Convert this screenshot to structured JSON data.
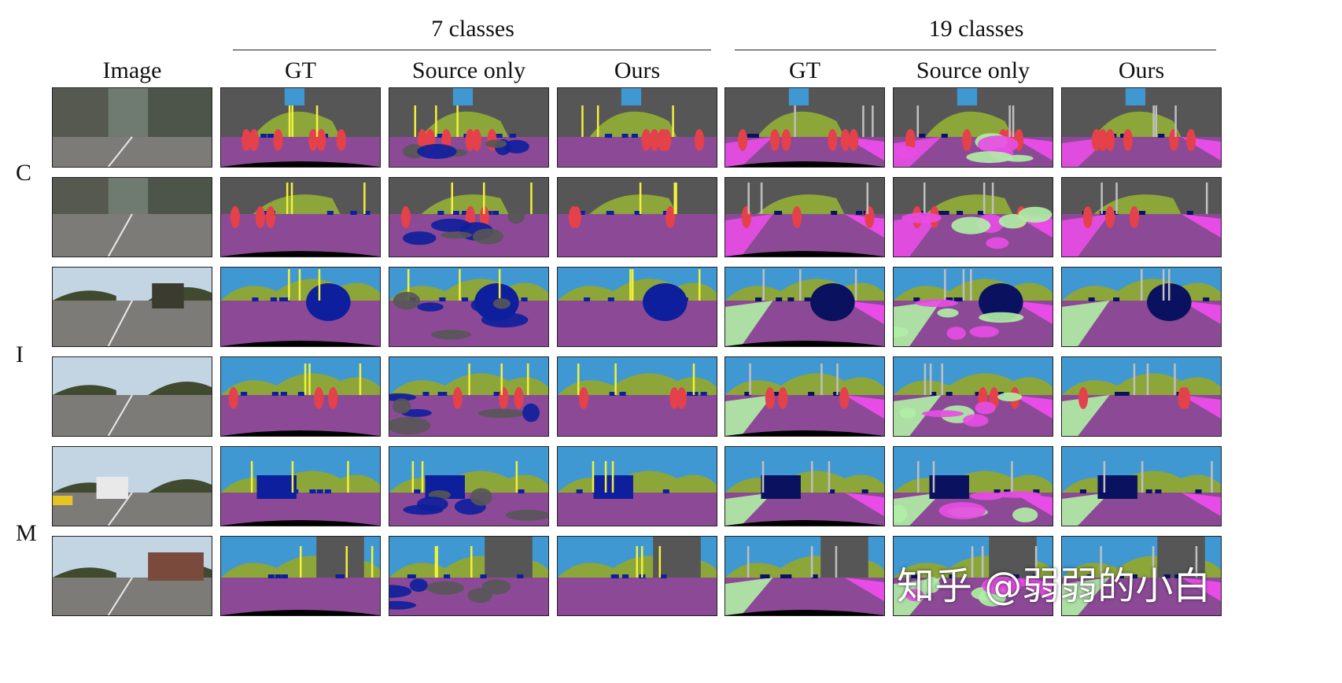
{
  "groups": [
    "7 classes",
    "19 classes"
  ],
  "columns": [
    "Image",
    "GT",
    "Source only",
    "Ours",
    "GT",
    "Source only",
    "Ours"
  ],
  "row_groups": [
    "C",
    "I",
    "M"
  ],
  "watermark": "知乎 @弱弱的小白",
  "palette": {
    "sky": "#3f98d2",
    "vegetation": "#8da63a",
    "building": "#565656",
    "road": "#8c4a96",
    "vehicle": "#0d1f9c",
    "vehicle_dark": "#0a1260",
    "person": "#e4414b",
    "pole": "#f2f03a",
    "void": "#000000",
    "sidewalk": "#e84ce6",
    "terrain": "#b0f0a6",
    "photo_sky": "#c9d6df",
    "photo_road": "#7d7b78",
    "photo_tree": "#3f4a2e"
  }
}
